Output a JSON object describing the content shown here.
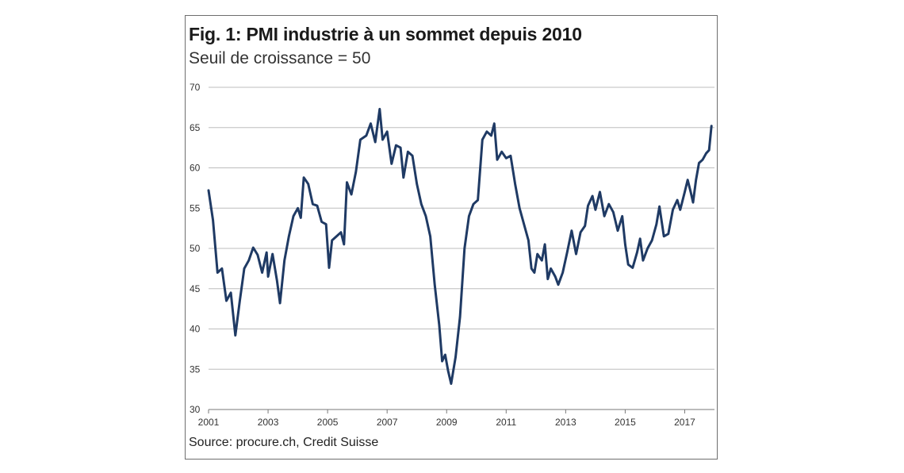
{
  "title": "Fig. 1: PMI industrie à un sommet depuis 2010",
  "subtitle": "Seuil de croissance = 50",
  "source": "Source: procure.ch, Credit Suisse",
  "colors": {
    "line": "#1f3a64",
    "grid": "#bdbdbd",
    "axis": "#7a7a7a"
  },
  "chart_data": {
    "type": "line",
    "title": "Fig. 1: PMI industrie à un sommet depuis 2010",
    "subtitle": "Seuil de croissance = 50",
    "xlabel": "",
    "ylabel": "",
    "xlim": [
      2001,
      2018
    ],
    "ylim": [
      30,
      70
    ],
    "xticks": [
      2001,
      2003,
      2005,
      2007,
      2009,
      2011,
      2013,
      2015,
      2017
    ],
    "yticks": [
      30,
      35,
      40,
      45,
      50,
      55,
      60,
      65,
      70
    ],
    "grid": "horizontal",
    "legend": "none",
    "series": [
      {
        "name": "",
        "points": [
          [
            2001.0,
            57.2
          ],
          [
            2001.15,
            53.5
          ],
          [
            2001.3,
            47.0
          ],
          [
            2001.45,
            47.5
          ],
          [
            2001.6,
            43.5
          ],
          [
            2001.75,
            44.5
          ],
          [
            2001.9,
            39.2
          ],
          [
            2002.05,
            43.5
          ],
          [
            2002.2,
            47.5
          ],
          [
            2002.35,
            48.5
          ],
          [
            2002.5,
            50.1
          ],
          [
            2002.65,
            49.2
          ],
          [
            2002.8,
            47.0
          ],
          [
            2002.95,
            49.5
          ],
          [
            2003.0,
            46.5
          ],
          [
            2003.15,
            49.3
          ],
          [
            2003.3,
            46.0
          ],
          [
            2003.4,
            43.2
          ],
          [
            2003.55,
            48.5
          ],
          [
            2003.7,
            51.5
          ],
          [
            2003.85,
            54.0
          ],
          [
            2004.0,
            55.0
          ],
          [
            2004.1,
            53.8
          ],
          [
            2004.2,
            58.8
          ],
          [
            2004.35,
            58.0
          ],
          [
            2004.5,
            55.5
          ],
          [
            2004.65,
            55.3
          ],
          [
            2004.8,
            53.3
          ],
          [
            2004.95,
            53.0
          ],
          [
            2005.05,
            47.6
          ],
          [
            2005.15,
            51.0
          ],
          [
            2005.3,
            51.5
          ],
          [
            2005.45,
            52.0
          ],
          [
            2005.55,
            50.5
          ],
          [
            2005.65,
            58.2
          ],
          [
            2005.8,
            56.7
          ],
          [
            2005.95,
            59.5
          ],
          [
            2006.1,
            63.5
          ],
          [
            2006.3,
            64.0
          ],
          [
            2006.45,
            65.5
          ],
          [
            2006.6,
            63.2
          ],
          [
            2006.75,
            67.3
          ],
          [
            2006.85,
            63.5
          ],
          [
            2007.0,
            64.5
          ],
          [
            2007.15,
            60.5
          ],
          [
            2007.3,
            62.8
          ],
          [
            2007.45,
            62.5
          ],
          [
            2007.55,
            58.8
          ],
          [
            2007.7,
            62.0
          ],
          [
            2007.85,
            61.5
          ],
          [
            2008.0,
            58.0
          ],
          [
            2008.15,
            55.5
          ],
          [
            2008.3,
            54.0
          ],
          [
            2008.45,
            51.5
          ],
          [
            2008.6,
            45.5
          ],
          [
            2008.75,
            40.5
          ],
          [
            2008.85,
            36.0
          ],
          [
            2008.95,
            36.8
          ],
          [
            2009.05,
            34.8
          ],
          [
            2009.15,
            33.2
          ],
          [
            2009.3,
            36.5
          ],
          [
            2009.45,
            41.5
          ],
          [
            2009.6,
            50.0
          ],
          [
            2009.75,
            54.0
          ],
          [
            2009.9,
            55.5
          ],
          [
            2010.05,
            56.0
          ],
          [
            2010.2,
            63.5
          ],
          [
            2010.35,
            64.5
          ],
          [
            2010.5,
            64.0
          ],
          [
            2010.6,
            65.5
          ],
          [
            2010.7,
            61.0
          ],
          [
            2010.85,
            62.0
          ],
          [
            2011.0,
            61.2
          ],
          [
            2011.15,
            61.5
          ],
          [
            2011.3,
            58.0
          ],
          [
            2011.45,
            55.0
          ],
          [
            2011.6,
            53.0
          ],
          [
            2011.75,
            51.0
          ],
          [
            2011.85,
            47.5
          ],
          [
            2011.95,
            47.0
          ],
          [
            2012.05,
            49.3
          ],
          [
            2012.2,
            48.5
          ],
          [
            2012.3,
            50.5
          ],
          [
            2012.4,
            46.2
          ],
          [
            2012.5,
            47.5
          ],
          [
            2012.65,
            46.5
          ],
          [
            2012.75,
            45.5
          ],
          [
            2012.9,
            47.0
          ],
          [
            2013.05,
            49.5
          ],
          [
            2013.2,
            52.2
          ],
          [
            2013.35,
            49.3
          ],
          [
            2013.5,
            52.0
          ],
          [
            2013.65,
            52.8
          ],
          [
            2013.75,
            55.3
          ],
          [
            2013.9,
            56.5
          ],
          [
            2014.0,
            54.8
          ],
          [
            2014.15,
            57.0
          ],
          [
            2014.3,
            54.0
          ],
          [
            2014.45,
            55.5
          ],
          [
            2014.6,
            54.5
          ],
          [
            2014.75,
            52.2
          ],
          [
            2014.9,
            54.0
          ],
          [
            2015.0,
            50.5
          ],
          [
            2015.1,
            48.0
          ],
          [
            2015.25,
            47.6
          ],
          [
            2015.4,
            49.5
          ],
          [
            2015.5,
            51.2
          ],
          [
            2015.6,
            48.5
          ],
          [
            2015.75,
            50.0
          ],
          [
            2015.9,
            51.0
          ],
          [
            2016.05,
            53.0
          ],
          [
            2016.15,
            55.2
          ],
          [
            2016.3,
            51.5
          ],
          [
            2016.45,
            51.8
          ],
          [
            2016.6,
            54.8
          ],
          [
            2016.75,
            56.0
          ],
          [
            2016.85,
            54.8
          ],
          [
            2017.0,
            57.0
          ],
          [
            2017.1,
            58.5
          ],
          [
            2017.2,
            57.0
          ],
          [
            2017.28,
            55.7
          ],
          [
            2017.38,
            58.5
          ],
          [
            2017.48,
            60.6
          ],
          [
            2017.6,
            61.0
          ],
          [
            2017.72,
            61.8
          ],
          [
            2017.82,
            62.2
          ],
          [
            2017.9,
            65.2
          ]
        ]
      }
    ]
  }
}
